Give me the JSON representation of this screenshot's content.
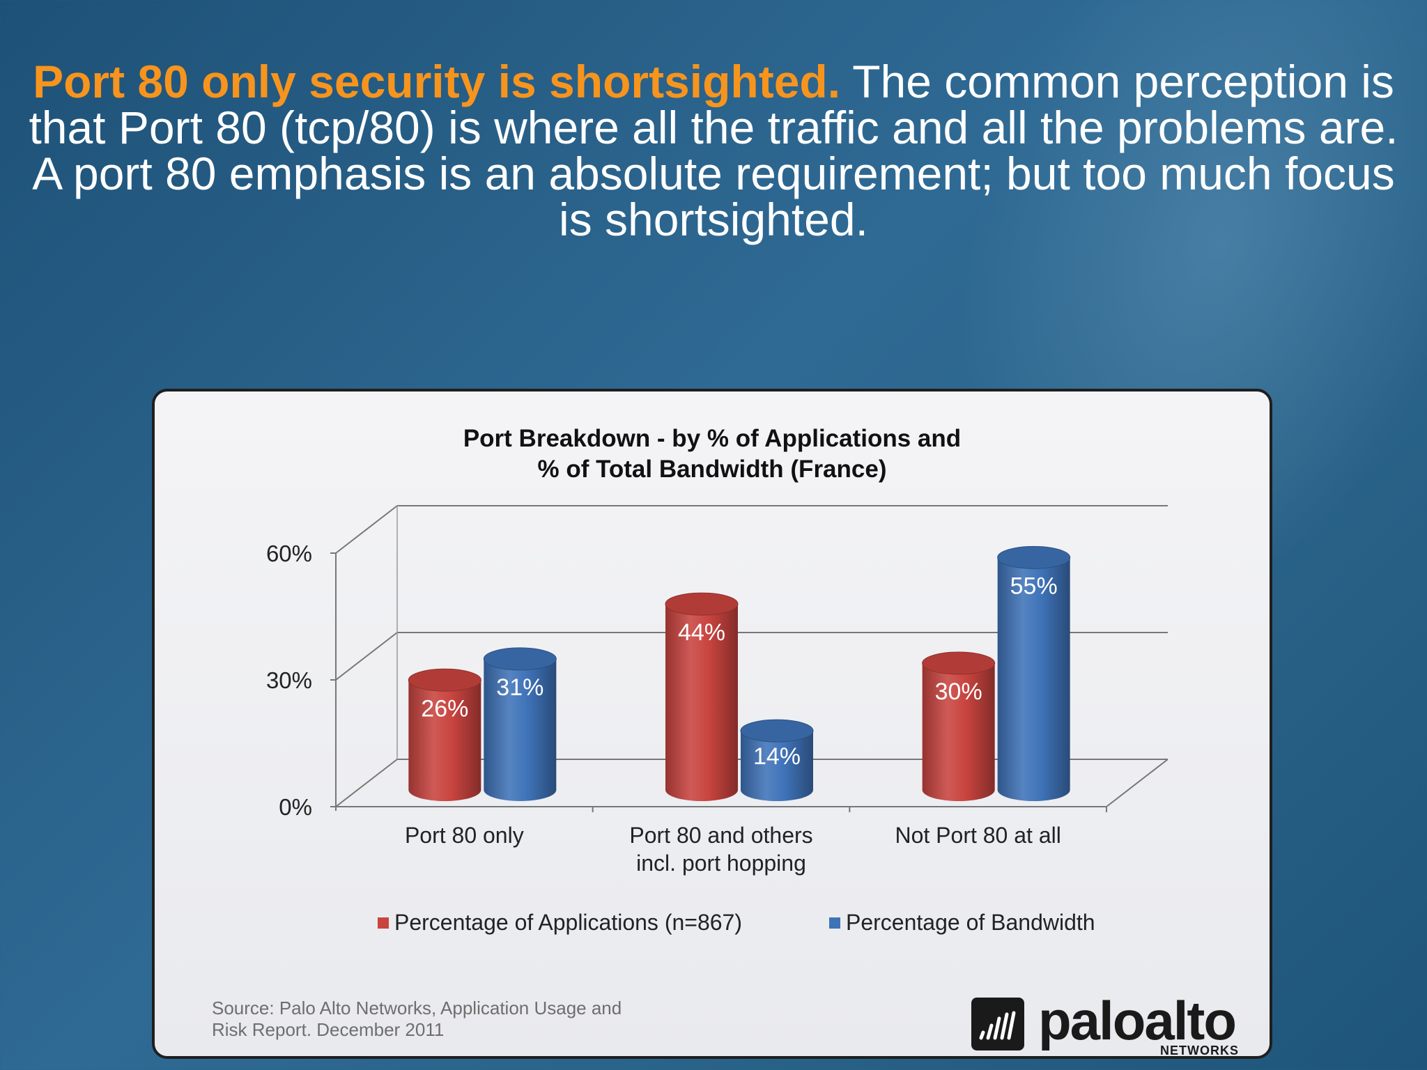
{
  "slide": {
    "headline_accent": "Port 80 only security is shortsighted.",
    "headline_rest": " The common perception is that Port 80 (tcp/80) is where all the traffic and all the problems are. A port 80 emphasis is an absolute requirement; but too much focus is shortsighted.",
    "accent_color": "#f7941d",
    "source_line1": "Source: Palo Alto Networks, Application Usage and",
    "source_line2": "Risk Report. December 2011",
    "logo_text": "paloalto",
    "logo_subtext": "NETWORKS"
  },
  "chart_data": {
    "type": "bar",
    "title_line1": "Port Breakdown - by % of Applications and",
    "title_line2": "% of Total Bandwidth (France)",
    "categories": [
      [
        "Port 80 only"
      ],
      [
        "Port 80 and others",
        "incl. port hopping"
      ],
      [
        "Not Port 80 at all"
      ]
    ],
    "series": [
      {
        "name": "Percentage of Applications (n=867)",
        "values": [
          26,
          44,
          30
        ],
        "labels": [
          "26%",
          "44%",
          "30%"
        ],
        "color": "#c9443f"
      },
      {
        "name": "Percentage of Bandwidth",
        "values": [
          31,
          14,
          55
        ],
        "labels": [
          "31%",
          "14%",
          "55%"
        ],
        "color": "#3f73b8"
      }
    ],
    "yticks": [
      "0%",
      "30%",
      "60%"
    ],
    "ylim": [
      0,
      60
    ],
    "style": "3d-cylinder",
    "grid": true,
    "legend": "bottom"
  }
}
